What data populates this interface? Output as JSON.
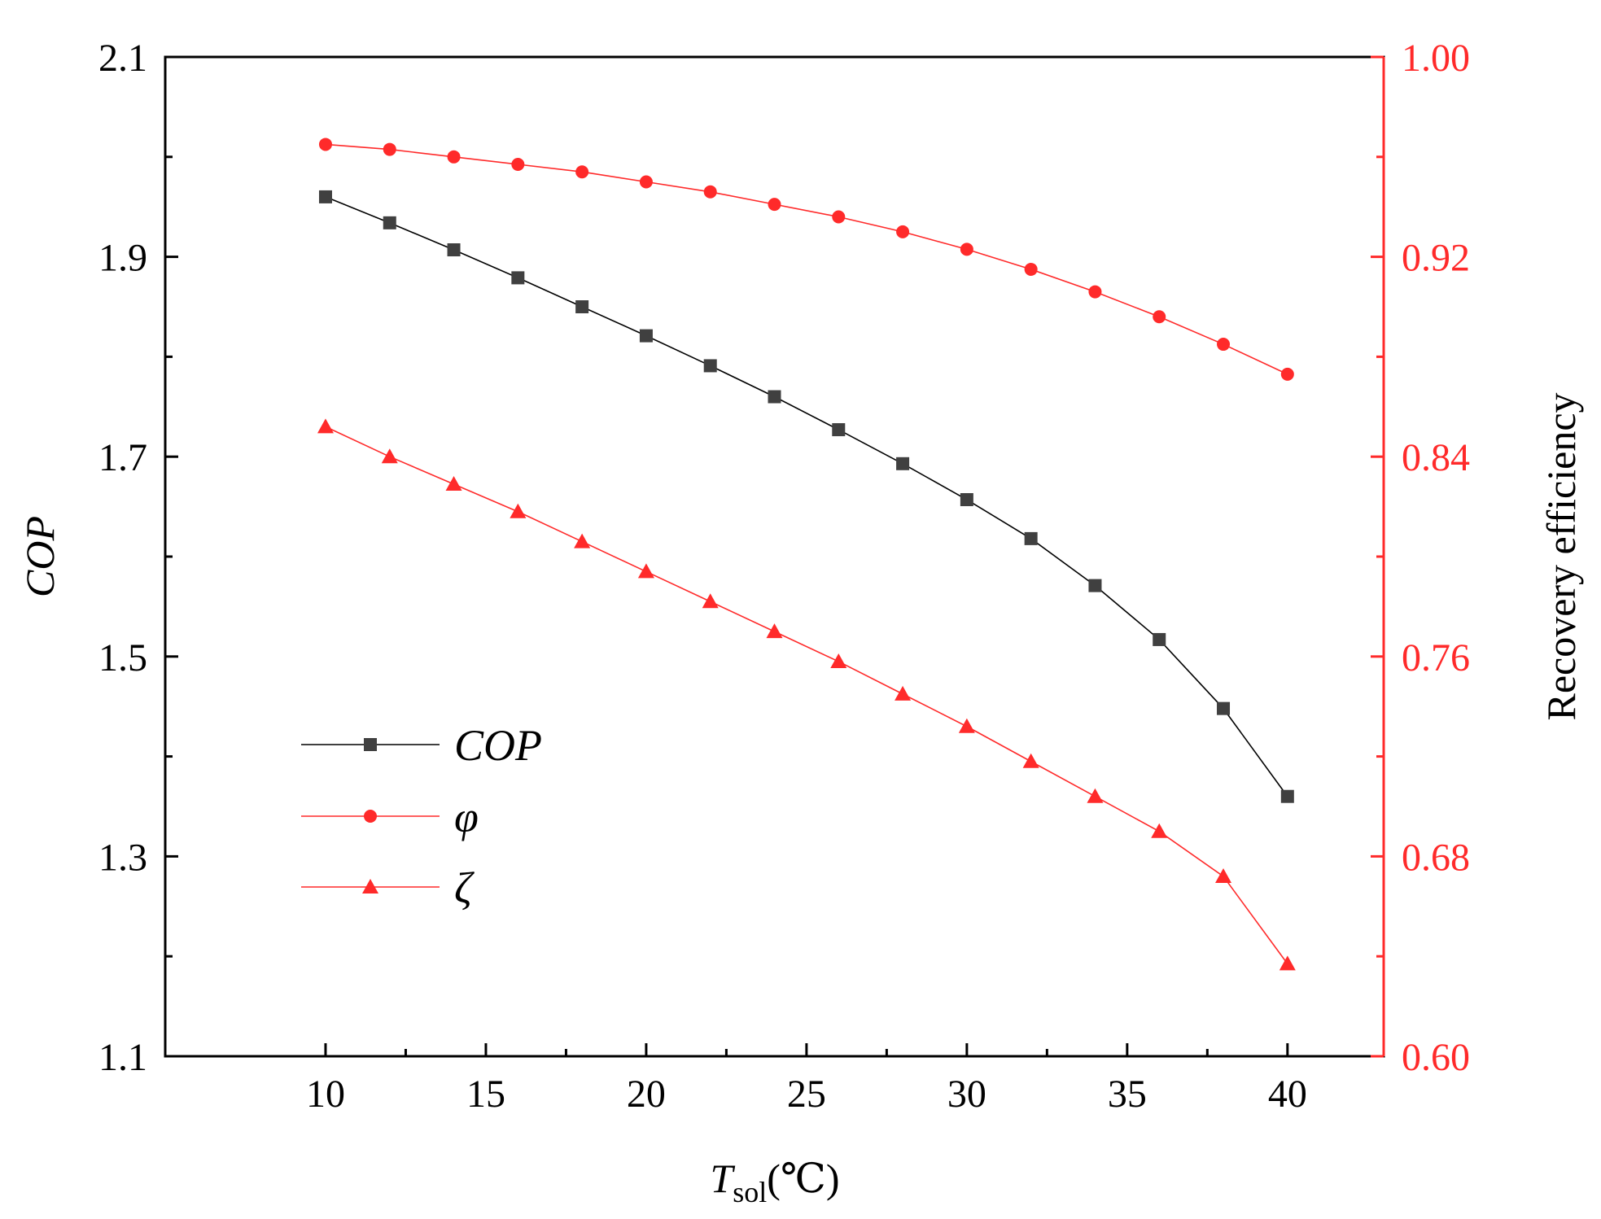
{
  "chart_data": {
    "type": "line",
    "x": [
      10,
      12,
      14,
      16,
      18,
      20,
      22,
      24,
      26,
      28,
      30,
      32,
      34,
      36,
      38,
      40
    ],
    "xlabel_main": "T",
    "xlabel_sub": "sol",
    "xlabel_unit": "(℃)",
    "xlim": [
      5,
      43
    ],
    "x_ticks": [
      10,
      15,
      20,
      25,
      30,
      35,
      40
    ],
    "x_tick_labels": [
      "10",
      "15",
      "20",
      "25",
      "30",
      "35",
      "40"
    ],
    "left_axis": {
      "label": "COP",
      "ylim": [
        1.1,
        2.1
      ],
      "ticks": [
        1.1,
        1.3,
        1.5,
        1.7,
        1.9,
        2.1
      ],
      "tick_labels": [
        "1.1",
        "1.3",
        "1.5",
        "1.7",
        "1.9",
        "2.1"
      ],
      "color": "#000000"
    },
    "right_axis": {
      "label": "Recovery efficiency",
      "ylim": [
        0.6,
        1.0
      ],
      "ticks": [
        0.6,
        0.68,
        0.76,
        0.84,
        0.92,
        1.0
      ],
      "tick_labels": [
        "0.60",
        "0.68",
        "0.76",
        "0.84",
        "0.92",
        "1.00"
      ],
      "color": "#ff2a2a"
    },
    "series": [
      {
        "name": "COP",
        "axis": "left",
        "marker": "square",
        "color": "#404040",
        "line_color": "#000000",
        "values": [
          1.96,
          1.934,
          1.907,
          1.879,
          1.85,
          1.821,
          1.791,
          1.76,
          1.727,
          1.693,
          1.657,
          1.618,
          1.571,
          1.517,
          1.448,
          1.36
        ]
      },
      {
        "name": "φ",
        "axis": "right",
        "marker": "circle",
        "color": "#ff2a2a",
        "line_color": "#ff2a2a",
        "values": [
          0.965,
          0.963,
          0.96,
          0.957,
          0.954,
          0.95,
          0.946,
          0.941,
          0.936,
          0.93,
          0.923,
          0.915,
          0.906,
          0.896,
          0.885,
          0.873
        ]
      },
      {
        "name": "ζ",
        "axis": "right",
        "marker": "triangle",
        "color": "#ff2a2a",
        "line_color": "#ff2a2a",
        "values": [
          0.852,
          0.84,
          0.829,
          0.818,
          0.806,
          0.794,
          0.782,
          0.77,
          0.758,
          0.745,
          0.732,
          0.718,
          0.704,
          0.69,
          0.672,
          0.637
        ]
      }
    ],
    "legend_position": "lower-left"
  }
}
